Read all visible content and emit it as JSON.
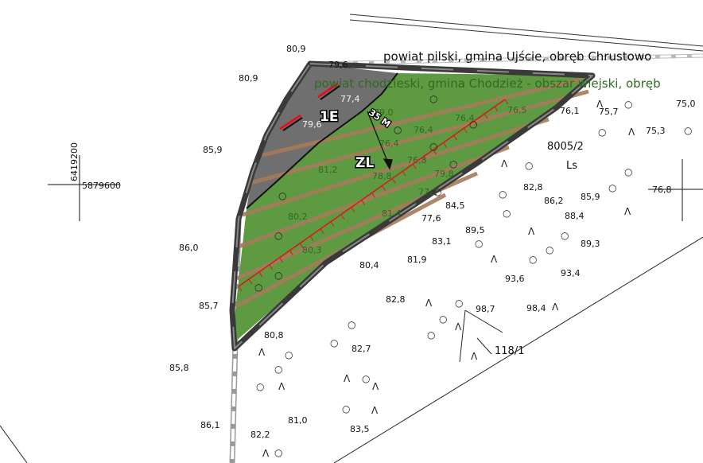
{
  "admin_lines": {
    "north": "powiat pilski, gmina Ujście, obręb Chrustowo",
    "south": "powiat chodzieski, gmina Chodzież - obszar wiejski, obręb"
  },
  "areas": {
    "e_label": "1E",
    "zl_label": "ZL",
    "distance_label": "35 M"
  },
  "parcels": {
    "main_number": "8005/2",
    "main_use": "Ls",
    "other_number": "118/1"
  },
  "coordinates": {
    "x_value": "6419200",
    "y_value": "5879600"
  },
  "colors": {
    "grey_area": "#6f6f6f",
    "green_area": "#5e9a41",
    "stripes": "#a67b5b",
    "boundary": "#3a3a3a",
    "axis_line": "#e0141e"
  },
  "heights": {
    "outside": [
      "80,9",
      "80,9",
      "85,9",
      "86,0",
      "85,7",
      "85,8",
      "86,1",
      "81,0",
      "82,2",
      "83,5",
      "82,7",
      "80,8",
      "82,8",
      "81,9",
      "83,1",
      "84,5",
      "89,5",
      "86,2",
      "88,4",
      "89,3",
      "93,6",
      "93,4",
      "98,7",
      "98,4",
      "85,9",
      "82,8",
      "76,1",
      "75,7",
      "75,3",
      "75,0",
      "76,8",
      "80,4",
      "77,6"
    ],
    "on_green": [
      "76,5",
      "76,4",
      "76,4",
      "76,4",
      "76,8",
      "79,8",
      "77,2",
      "78,8",
      "81,2",
      "80,2",
      "81,4",
      "80,3",
      "79,0"
    ],
    "on_grey": [
      "79,6",
      "77,4",
      "79,6"
    ]
  },
  "symbols": {
    "forest": "Λ",
    "deciduous": "○"
  }
}
